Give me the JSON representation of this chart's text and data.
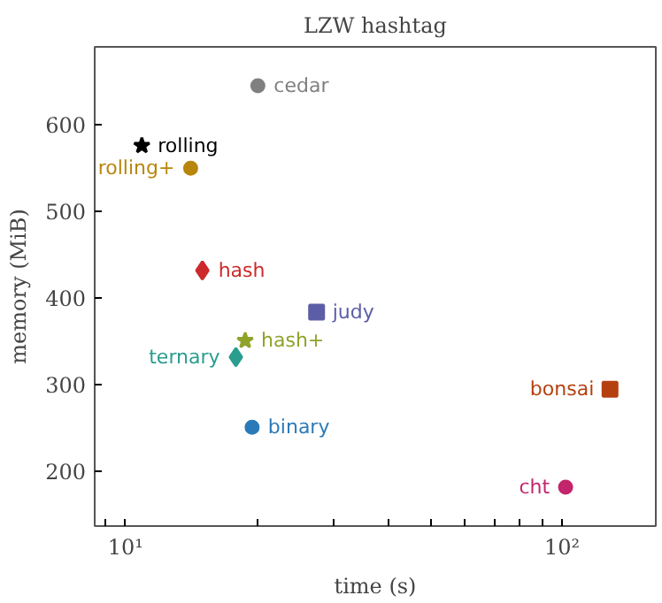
{
  "chart_data": {
    "type": "scatter",
    "title": "LZW hashtag",
    "xlabel": "time (s)",
    "ylabel": "memory (MiB)",
    "log": "x",
    "xlim": [
      8.5,
      164
    ],
    "ylim": [
      137,
      690
    ],
    "xticks": [
      {
        "value": 9,
        "label": null
      },
      {
        "value": 10,
        "label": "10¹"
      },
      {
        "value": 20,
        "label": null
      },
      {
        "value": 30,
        "label": null
      },
      {
        "value": 40,
        "label": null
      },
      {
        "value": 50,
        "label": null
      },
      {
        "value": 60,
        "label": null
      },
      {
        "value": 70,
        "label": null
      },
      {
        "value": 80,
        "label": null
      },
      {
        "value": 90,
        "label": null
      },
      {
        "value": 100,
        "label": "10²"
      }
    ],
    "yticks": [
      200,
      300,
      400,
      500,
      600
    ],
    "grid": false,
    "series": [
      {
        "name": "cedar",
        "color": "#808080",
        "marker": "circle",
        "x": [
          20.1
        ],
        "values": [
          645
        ]
      },
      {
        "name": "rolling",
        "color": "#000000",
        "marker": "star",
        "x": [
          10.9
        ],
        "values": [
          576
        ]
      },
      {
        "name": "rolling+",
        "color": "#b8860b",
        "marker": "circle",
        "x": [
          14.1
        ],
        "values": [
          550
        ]
      },
      {
        "name": "hash",
        "color": "#cc2a2a",
        "marker": "diamond",
        "x": [
          15.0
        ],
        "values": [
          432
        ]
      },
      {
        "name": "hash+",
        "color": "#8fa32a",
        "marker": "star",
        "x": [
          18.8
        ],
        "values": [
          351
        ]
      },
      {
        "name": "judy",
        "color": "#5b5ea6",
        "marker": "square",
        "x": [
          27.4
        ],
        "values": [
          384
        ]
      },
      {
        "name": "ternary",
        "color": "#2a9d8f",
        "marker": "diamond",
        "x": [
          17.9
        ],
        "values": [
          332
        ]
      },
      {
        "name": "binary",
        "color": "#2a7ab8",
        "marker": "circle",
        "x": [
          19.5
        ],
        "values": [
          251
        ]
      },
      {
        "name": "bonsai",
        "color": "#b5400f",
        "marker": "square",
        "x": [
          128.8
        ],
        "values": [
          295
        ]
      },
      {
        "name": "cht",
        "color": "#c2256b",
        "marker": "circle",
        "x": [
          101.9
        ],
        "values": [
          182
        ]
      }
    ]
  }
}
